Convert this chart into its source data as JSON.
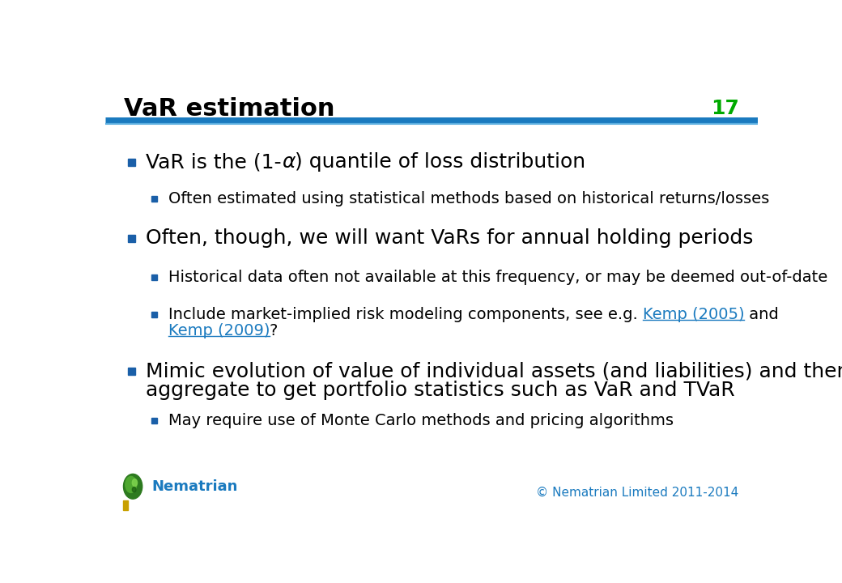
{
  "title": "VaR estimation",
  "slide_number": "17",
  "title_color": "#000000",
  "title_fontsize": 22,
  "slide_number_color": "#00aa00",
  "header_line_color": "#1a7abf",
  "background_color": "#ffffff",
  "bullet_color": "#1a5fa8",
  "text_color": "#000000",
  "link_color": "#1a7abf",
  "footer_text_color": "#1a7abf",
  "footer_brand": "Nematrian",
  "footer_copyright": "© Nematrian Limited 2011-2014"
}
